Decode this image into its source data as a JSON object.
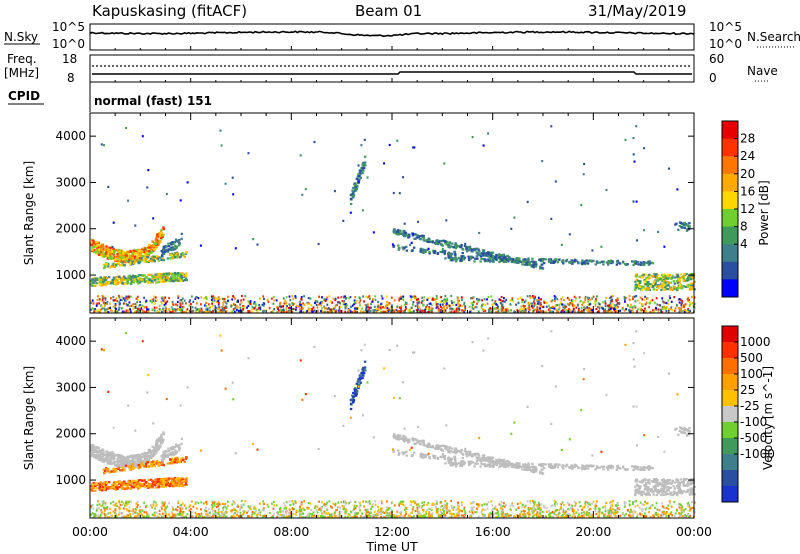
{
  "header": {
    "station": "Kapuskasing (fitACF)",
    "beam": "Beam 01",
    "date": "31/May/2019"
  },
  "status_panel": {
    "nsky_label": "N.Sky",
    "nsky_ticks": [
      "10^5",
      "10^0"
    ],
    "nsearch_label": "N.Search",
    "nsearch_ticks": [
      "10^5",
      "10^0"
    ],
    "freq_label": "Freq.",
    "freq_unit": "[MHz]",
    "freq_ticks": [
      "18",
      "8"
    ],
    "nave_label": "Nave",
    "nave_ticks": [
      "60",
      "0"
    ],
    "cpid_label": "CPID",
    "cpid_value": "normal (fast) 151"
  },
  "colors": {
    "power_scale": [
      "#0000ff",
      "#2a4fa0",
      "#3d7f8a",
      "#3f9a5b",
      "#6fcf30",
      "#ffd700",
      "#ffaa00",
      "#ff7700",
      "#ff3300",
      "#e60000"
    ],
    "velocity_scale": [
      "#1a33cc",
      "#2a4fa0",
      "#3d7f8a",
      "#3f9a5b",
      "#6fcf30",
      "#c8c8c8",
      "#ffc000",
      "#ffa000",
      "#ff7000",
      "#ff3000",
      "#e00000"
    ],
    "ground_scatter": "#bdbdbd"
  },
  "chart_data": [
    {
      "type": "heatmap",
      "name": "power",
      "ylabel": "Slant Range [km]",
      "xlabel": "",
      "colorbar_label": "Power [dB]",
      "colorbar_ticks": [
        "28",
        "24",
        "20",
        "16",
        "12",
        "8",
        "4"
      ],
      "ylim": [
        180,
        4500
      ],
      "yticks": [
        "4000",
        "3000",
        "2000",
        "1000"
      ],
      "xlim_hours": [
        0,
        24
      ],
      "regions": [
        {
          "t0": 0.0,
          "t1": 3.0,
          "r0": 1350,
          "r1": 2000,
          "level": "high"
        },
        {
          "t0": 0.0,
          "t1": 3.8,
          "r0": 700,
          "r1": 1300,
          "level": "mid"
        },
        {
          "t0": 10.2,
          "t1": 10.9,
          "r0": 1800,
          "r1": 3600,
          "level": "low"
        },
        {
          "t0": 11.8,
          "t1": 18.0,
          "r0": 1200,
          "r1": 2100,
          "level": "low"
        },
        {
          "t0": 14.0,
          "t1": 22.5,
          "r0": 1000,
          "r1": 1500,
          "level": "low"
        },
        {
          "t0": 21.7,
          "t1": 24.0,
          "r0": 600,
          "r1": 1000,
          "level": "mid"
        },
        {
          "t0": 0.0,
          "t1": 24.0,
          "r0": 180,
          "r1": 450,
          "level": "mixed"
        }
      ]
    },
    {
      "type": "heatmap",
      "name": "velocity",
      "ylabel": "Slant Range [km]",
      "xlabel": "Time UT",
      "colorbar_label": "Velocity [m s^-1]",
      "colorbar_ticks": [
        "1000",
        "500",
        "100",
        "25",
        "-25",
        "-100",
        "-500",
        "-1000"
      ],
      "ylim": [
        180,
        4500
      ],
      "yticks": [
        "4000",
        "3000",
        "2000",
        "1000"
      ],
      "xticks": [
        "00:00",
        "04:00",
        "08:00",
        "12:00",
        "16:00",
        "20:00",
        "00:00"
      ],
      "xlim_hours": [
        0,
        24
      ]
    }
  ]
}
